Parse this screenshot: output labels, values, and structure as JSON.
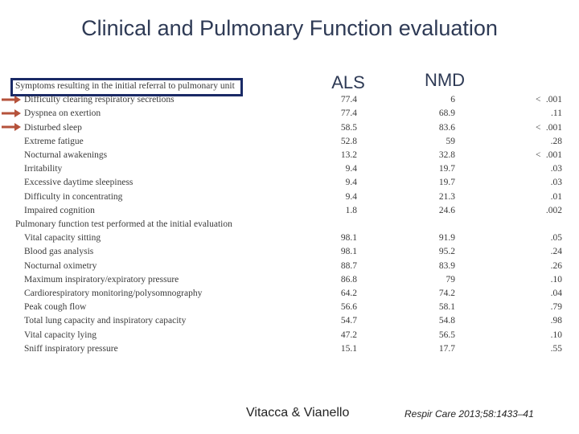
{
  "title": "Clinical and Pulmonary Function evaluation",
  "columns": {
    "group1": "ALS",
    "group2": "NMD"
  },
  "sections": [
    {
      "heading": "Symptoms resulting in the initial referral to pulmonary unit",
      "rows": [
        {
          "label": "Difficulty clearing respiratory secretions",
          "als": "77.4",
          "nmd": "6",
          "p_prefix": "<",
          "p": ".001"
        },
        {
          "label": "Dyspnea on exertion",
          "als": "77.4",
          "nmd": "68.9",
          "p": ".11"
        },
        {
          "label": "Disturbed sleep",
          "als": "58.5",
          "nmd": "83.6",
          "p_prefix": "<",
          "p": ".001"
        },
        {
          "label": "Extreme fatigue",
          "als": "52.8",
          "nmd": "59",
          "p": ".28"
        },
        {
          "label": "Nocturnal awakenings",
          "als": "13.2",
          "nmd": "32.8",
          "p_prefix": "<",
          "p": ".001"
        },
        {
          "label": "Irritability",
          "als": "9.4",
          "nmd": "19.7",
          "p": ".03"
        },
        {
          "label": "Excessive daytime sleepiness",
          "als": "9.4",
          "nmd": "19.7",
          "p": ".03"
        },
        {
          "label": "Difficulty in concentrating",
          "als": "9.4",
          "nmd": "21.3",
          "p": ".01"
        },
        {
          "label": "Impaired cognition",
          "als": "1.8",
          "nmd": "24.6",
          "p": ".002"
        }
      ]
    },
    {
      "heading": "Pulmonary function test performed at the initial evaluation",
      "rows": [
        {
          "label": "Vital capacity sitting",
          "als": "98.1",
          "nmd": "91.9",
          "p": ".05"
        },
        {
          "label": "Blood gas analysis",
          "als": "98.1",
          "nmd": "95.2",
          "p": ".24"
        },
        {
          "label": "Nocturnal oximetry",
          "als": "88.7",
          "nmd": "83.9",
          "p": ".26"
        },
        {
          "label": "Maximum inspiratory/expiratory pressure",
          "als": "86.8",
          "nmd": "79",
          "p": ".10"
        },
        {
          "label": "Cardiorespiratory monitoring/polysomnography",
          "als": "64.2",
          "nmd": "74.2",
          "p": ".04"
        },
        {
          "label": "Peak cough flow",
          "als": "56.6",
          "nmd": "58.1",
          "p": ".79"
        },
        {
          "label": "Total lung capacity and inspiratory capacity",
          "als": "54.7",
          "nmd": "54.8",
          "p": ".98"
        },
        {
          "label": "Vital capacity lying",
          "als": "47.2",
          "nmd": "56.5",
          "p": ".10"
        },
        {
          "label": "Sniff inspiratory pressure",
          "als": "15.1",
          "nmd": "17.7",
          "p": ".55"
        }
      ]
    }
  ],
  "footer": {
    "authors": "Vitacca & Vianello",
    "citation": "Respir Care 2013;58:1433–41"
  }
}
